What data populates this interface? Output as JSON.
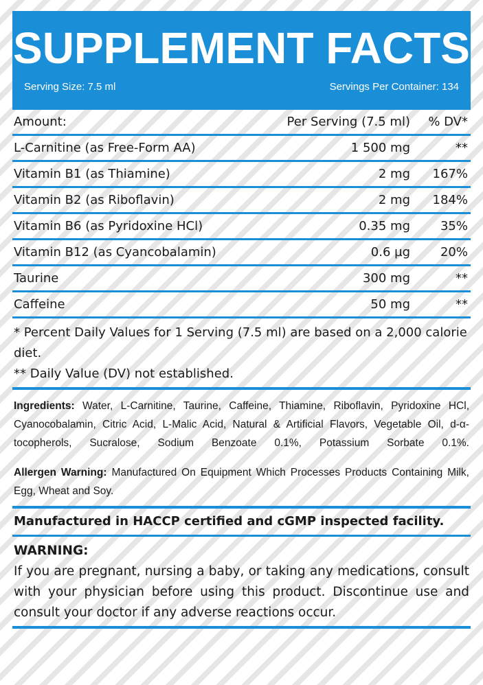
{
  "header": {
    "title": "SUPPLEMENT FACTS",
    "serving_size": "Serving Size: 7.5 ml",
    "servings_per_container": "Servings Per Container: 134"
  },
  "table": {
    "header": {
      "amount": "Amount:",
      "per_serving": "Per Serving (7.5 ml)",
      "dv": "% DV*"
    },
    "rows": [
      {
        "name": "L-Carnitine (as Free-Form AA)",
        "amount": "1 500 mg",
        "dv": "**"
      },
      {
        "name": "Vitamin B1 (as Thiamine)",
        "amount": "2 mg",
        "dv": "167%"
      },
      {
        "name": "Vitamin B2 (as Riboflavin)",
        "amount": "2 mg",
        "dv": "184%"
      },
      {
        "name": "Vitamin B6 (as Pyridoxine HCl)",
        "amount": "0.35 mg",
        "dv": "35%"
      },
      {
        "name": "Vitamin B12 (as Cyancobalamin)",
        "amount": "0.6 µg",
        "dv": "20%"
      },
      {
        "name": "Taurine",
        "amount": "300 mg",
        "dv": "**"
      },
      {
        "name": "Caffeine",
        "amount": "50 mg",
        "dv": "**"
      }
    ]
  },
  "notes": {
    "percent_note": "* Percent Daily Values for 1 Serving (7.5 ml) are based on a 2,000 calorie diet.",
    "dv_note": "** Daily Value (DV) not established."
  },
  "ingredients": {
    "label": "Ingredients:",
    "text": "Water, L-Carnitine, Taurine, Caffeine, Thiamine, Riboflavin, Pyridoxine HCl, Cyanocobalamin, Citric Acid, L-Malic Acid, Natural & Artificial Flavors, Vegetable Oil, d-α-tocopherols, Sucralose, Sodium Benzoate 0.1%, Potassium Sorbate 0.1%."
  },
  "allergen": {
    "label": "Allergen Warning:",
    "text": "Manufactured On Equipment Which Processes Products Containing Milk, Egg, Wheat and Soy."
  },
  "facility": "Manufactured in HACCP certified and cGMP inspected facility.",
  "warning": {
    "title": "WARNING:",
    "text": "If you are pregnant, nursing a baby, or taking any medications, consult with your physician before using this product. Discontinue use and consult your doctor if any adverse reactions occur."
  },
  "colors": {
    "accent": "#1a8fd8",
    "text": "#1a1a1a"
  }
}
